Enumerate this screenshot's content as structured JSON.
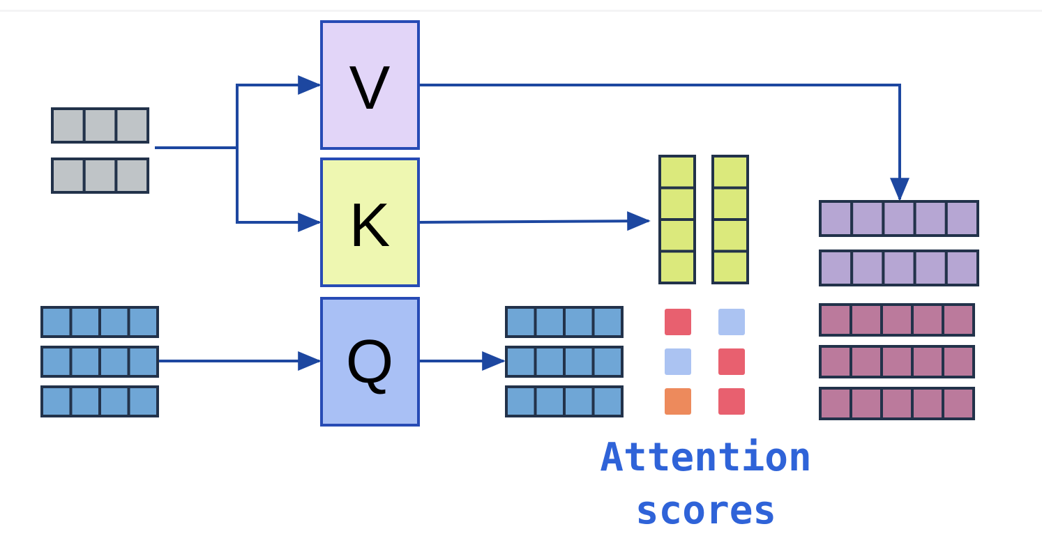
{
  "colors": {
    "arrow": "#1d47a0",
    "border": "#22324a",
    "box_border": "#274bb5",
    "v_fill": "#e2d5f8",
    "k_fill": "#eef7b1",
    "q_fill": "#a9c0f5",
    "gray_cell": "#bfc4c7",
    "blue_cell": "#6fa6d6",
    "green_cell": "#dbe97c",
    "lavender_cell": "#b6a6d3",
    "mauve_cell": "#bb7a9c",
    "score_red": "#e8606f",
    "score_light": "#abc3f2",
    "score_orange": "#ed8a5c",
    "caption": "#2f63d8"
  },
  "boxes": {
    "v": {
      "label": "V"
    },
    "k": {
      "label": "K"
    },
    "q": {
      "label": "Q"
    }
  },
  "input_rows": {
    "gray": 2,
    "gray_cells": 3,
    "blue": 3,
    "blue_cells": 4
  },
  "outputs": {
    "queries": {
      "rows": 3,
      "cells": 4
    },
    "keys": {
      "columns": 2,
      "cells": 4
    },
    "values": {
      "rows": 2,
      "cells": 5
    },
    "weighted": {
      "rows": 3,
      "cells": 5
    }
  },
  "scores": [
    [
      "red",
      "light"
    ],
    [
      "light",
      "red"
    ],
    [
      "orange",
      "red"
    ]
  ],
  "caption": {
    "line1": "Attention",
    "line2": "scores"
  }
}
